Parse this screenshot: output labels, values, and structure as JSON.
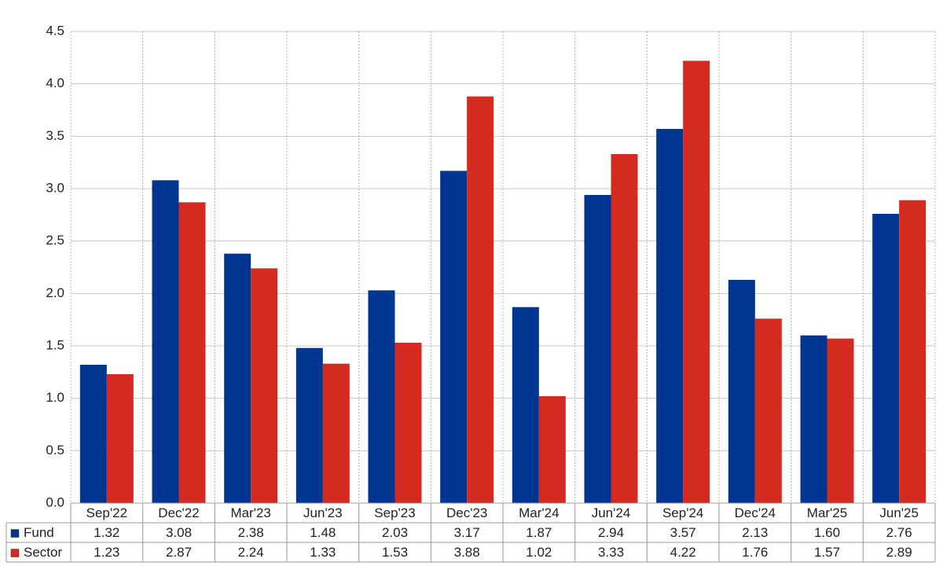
{
  "chart_data": {
    "type": "bar",
    "categories": [
      "Sep'22",
      "Dec'22",
      "Mar'23",
      "Jun'23",
      "Sep'23",
      "Dec'23",
      "Mar'24",
      "Jun'24",
      "Sep'24",
      "Dec'24",
      "Mar'25",
      "Jun'25"
    ],
    "series": [
      {
        "name": "Fund",
        "color": "#003591",
        "values": [
          1.32,
          3.08,
          2.38,
          1.48,
          2.03,
          3.17,
          1.87,
          2.94,
          3.57,
          2.13,
          1.6,
          2.76
        ],
        "value_labels": [
          "1.32",
          "3.08",
          "2.38",
          "1.48",
          "2.03",
          "3.17",
          "1.87",
          "2.94",
          "3.57",
          "2.13",
          "1.60",
          "2.76"
        ]
      },
      {
        "name": "Sector",
        "color": "#d42a20",
        "values": [
          1.23,
          2.87,
          2.24,
          1.33,
          1.53,
          3.88,
          1.02,
          3.33,
          4.22,
          1.76,
          1.57,
          2.89
        ]
      }
    ],
    "ylim": [
      0,
      4.5
    ],
    "yticks": [
      {
        "value": 0,
        "label": "0.0"
      },
      0.5,
      {
        "value": 1,
        "label": "1.0"
      },
      1.5,
      {
        "value": 2,
        "label": "2.0"
      },
      2.5,
      {
        "value": 3,
        "label": "3.0"
      },
      3.5,
      {
        "value": 4,
        "label": "4.0"
      },
      4.5
    ],
    "grid": true
  }
}
